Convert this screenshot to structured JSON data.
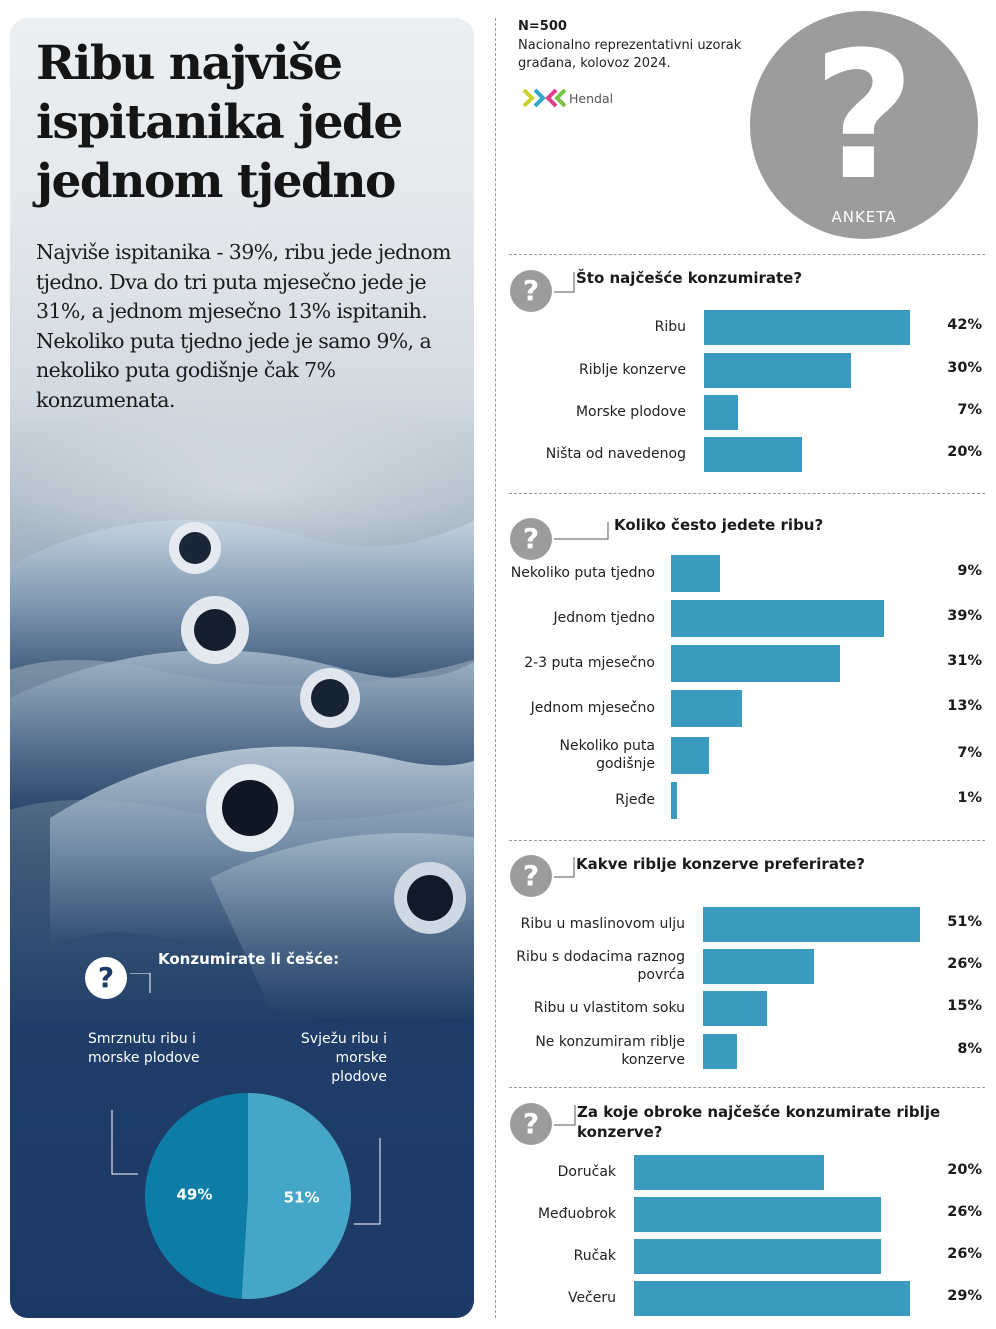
{
  "headline": "Ribu najviše ispitanika jede jednom tjedno",
  "intro": "Najviše ispitanika - 39%, ribu jede jednom tjedno. Dva do tri puta mjesečno jede je 31%, a jednom mjesečno 13% ispitanih. Nekoliko puta tjedno jede je samo 9%, a nekoliko puta godišnje čak 7% konzumenata.",
  "header": {
    "sample": "N=500",
    "description": "Nacionalno reprezentativni uzorak građana, kolovoz 2024.",
    "logo_text": "Hendal",
    "badge_text": "ANKETA"
  },
  "colors": {
    "bar": "#3a9bbf",
    "pie_frozen": "#0e7da6",
    "pie_fresh": "#45a6c7",
    "icon_gray": "#9c9c9c"
  },
  "chart_data": [
    {
      "type": "bar",
      "title": "Što najčešće konzumirate?",
      "categories": [
        "Ribu",
        "Riblje konzerve",
        "Morske plodove",
        "Ništa od navedenog"
      ],
      "values": [
        42,
        30,
        7,
        20
      ],
      "value_labels": [
        "42%",
        "30%",
        "7%",
        "20%"
      ]
    },
    {
      "type": "bar",
      "title": "Koliko često jedete ribu?",
      "categories": [
        "Nekoliko puta tjedno",
        "Jednom tjedno",
        "2-3 puta mjesečno",
        "Jednom mjesečno",
        "Nekoliko puta godišnje",
        "Rjeđe"
      ],
      "values": [
        9,
        39,
        31,
        13,
        7,
        1
      ],
      "value_labels": [
        "9%",
        "39%",
        "31%",
        "13%",
        "7%",
        "1%"
      ]
    },
    {
      "type": "bar",
      "title": "Kakve riblje konzerve preferirate?",
      "categories": [
        "Ribu u maslinovom ulju",
        "Ribu s dodacima raznog povrća",
        "Ribu u vlastitom soku",
        "Ne konzumiram riblje konzerve"
      ],
      "values": [
        51,
        26,
        15,
        8
      ],
      "value_labels": [
        "51%",
        "26%",
        "15%",
        "8%"
      ]
    },
    {
      "type": "bar",
      "title": "Za koje obroke najčešće konzumirate riblje konzerve?",
      "categories": [
        "Doručak",
        "Međuobrok",
        "Ručak",
        "Večeru"
      ],
      "values": [
        20,
        26,
        26,
        29
      ],
      "value_labels": [
        "20%",
        "26%",
        "26%",
        "29%"
      ]
    },
    {
      "type": "pie",
      "title": "Konzumirate li češće:",
      "categories": [
        "Smrznutu ribu i morske plodove",
        "Svježu ribu i morske plodove"
      ],
      "values": [
        49,
        51
      ],
      "value_labels": [
        "49%",
        "51%"
      ]
    }
  ]
}
